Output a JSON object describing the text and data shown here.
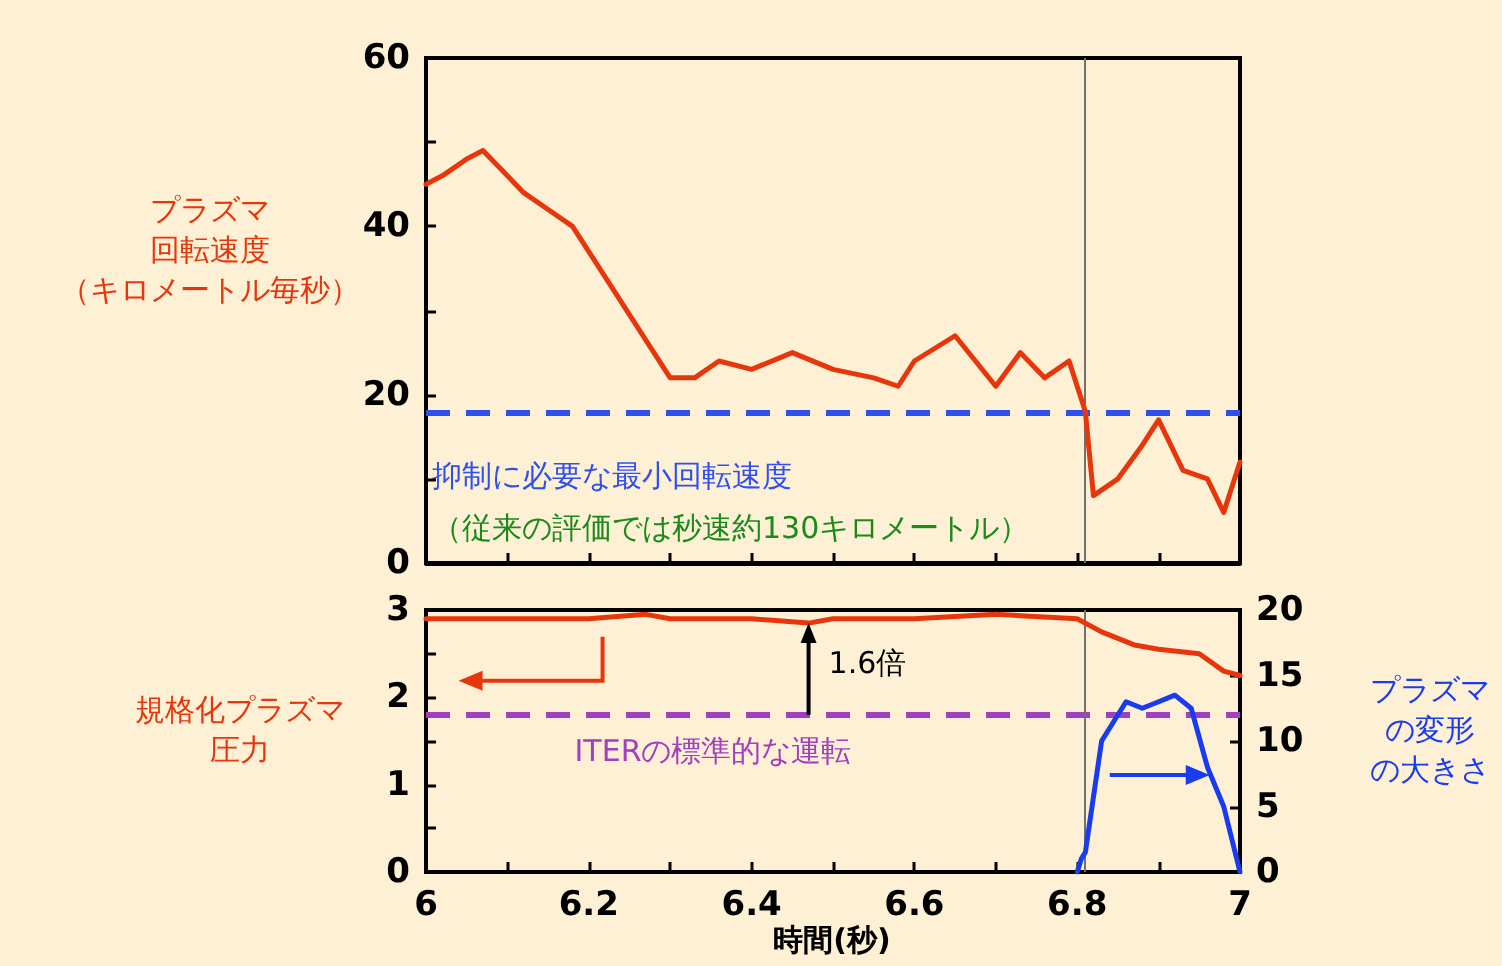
{
  "chart_data": [
    {
      "type": "line",
      "ylabel": "プラズマ回転速度（キロメートル毎秒）",
      "xlim": [
        6,
        7
      ],
      "xticks": [
        {
          "value": 6,
          "label": null
        },
        {
          "value": 6.1,
          "label": null
        },
        {
          "value": 6.2,
          "label": null
        },
        {
          "value": 6.3,
          "label": null
        },
        {
          "value": 6.4,
          "label": null
        },
        {
          "value": 6.5,
          "label": null
        },
        {
          "value": 6.6,
          "label": null
        },
        {
          "value": 6.7,
          "label": null
        },
        {
          "value": 6.8,
          "label": null
        },
        {
          "value": 6.9,
          "label": null
        },
        {
          "value": 7,
          "label": null
        }
      ],
      "ylim": [
        0,
        60
      ],
      "yticks": [
        0,
        {
          "value": 10,
          "label": null
        },
        20,
        {
          "value": 30,
          "label": null
        },
        40,
        {
          "value": 50,
          "label": null
        },
        60
      ],
      "tick_labels": "y",
      "grid": false,
      "marker": "none",
      "series": [
        {
          "color": "#e8360c",
          "x": [
            6.0,
            6.02,
            6.05,
            6.07,
            6.1,
            6.12,
            6.15,
            6.18,
            6.2,
            6.24,
            6.28,
            6.3,
            6.33,
            6.36,
            6.4,
            6.45,
            6.5,
            6.55,
            6.58,
            6.6,
            6.65,
            6.7,
            6.73,
            6.76,
            6.79,
            6.81,
            6.82,
            6.85,
            6.88,
            6.9,
            6.93,
            6.96,
            6.98,
            7.0
          ],
          "values": [
            45,
            46,
            48,
            49,
            46,
            44,
            42,
            40,
            37,
            31,
            25,
            22,
            22,
            24,
            23,
            25,
            23,
            22,
            21,
            24,
            27,
            21,
            25,
            22,
            24,
            18,
            8,
            10,
            14,
            17,
            11,
            10,
            6,
            12
          ]
        }
      ],
      "ref_lines": [
        {
          "axis": "y",
          "value": 18,
          "label": "抑制に必要な最小回転速度",
          "color": "#2f4ff0",
          "line_style": "dashed"
        },
        {
          "axis": "x",
          "value": 6.81,
          "color": "#707070",
          "line_style": "solid"
        }
      ],
      "annotations": [
        "（従来の評価では秒速約130キロメートル）"
      ]
    },
    {
      "type": "line",
      "xlabel": "時間(秒)",
      "ylabel": "規格化プラズマ圧力",
      "y2label": "プラズマの変形の大きさ",
      "xlim": [
        6,
        7
      ],
      "xticks": [
        6,
        {
          "value": 6.1,
          "label": null
        },
        6.2,
        {
          "value": 6.3,
          "label": null
        },
        6.4,
        {
          "value": 6.5,
          "label": null
        },
        6.6,
        {
          "value": 6.7,
          "label": null
        },
        6.8,
        {
          "value": 6.9,
          "label": null
        },
        7
      ],
      "ylim": [
        0,
        3
      ],
      "yticks": [
        0,
        {
          "value": 0.5,
          "label": null
        },
        1,
        {
          "value": 1.5,
          "label": null
        },
        2,
        {
          "value": 2.5,
          "label": null
        },
        3
      ],
      "y2lim": [
        0,
        20
      ],
      "y2ticks": [
        0,
        5,
        10,
        15,
        20
      ],
      "grid": false,
      "marker": "none",
      "series": [
        {
          "color": "#e8360c",
          "x": [
            6.0,
            6.1,
            6.2,
            6.27,
            6.3,
            6.4,
            6.47,
            6.5,
            6.6,
            6.7,
            6.8,
            6.83,
            6.87,
            6.9,
            6.95,
            6.98,
            7.0
          ],
          "values": [
            2.9,
            2.9,
            2.9,
            2.95,
            2.9,
            2.9,
            2.85,
            2.9,
            2.9,
            2.95,
            2.9,
            2.75,
            2.6,
            2.55,
            2.5,
            2.3,
            2.25
          ]
        },
        {
          "color": "#1a3cf0",
          "axis": "y2",
          "x": [
            6.8,
            6.805,
            6.81,
            6.83,
            6.86,
            6.88,
            6.9,
            6.92,
            6.94,
            6.96,
            6.98,
            7.0
          ],
          "values": [
            0,
            1,
            1.5,
            10,
            13,
            12.5,
            13,
            13.5,
            12.5,
            8,
            5,
            0
          ]
        }
      ],
      "ref_lines": [
        {
          "axis": "y",
          "value": 1.8,
          "label": "ITERの標準的な運転",
          "color": "#a040c0",
          "line_style": "dashed"
        },
        {
          "axis": "x",
          "value": 6.81,
          "color": "#707070",
          "line_style": "solid"
        }
      ],
      "annotations": [
        {
          "text": "1.6倍",
          "x": 6.47,
          "y": 2.85
        }
      ]
    }
  ]
}
